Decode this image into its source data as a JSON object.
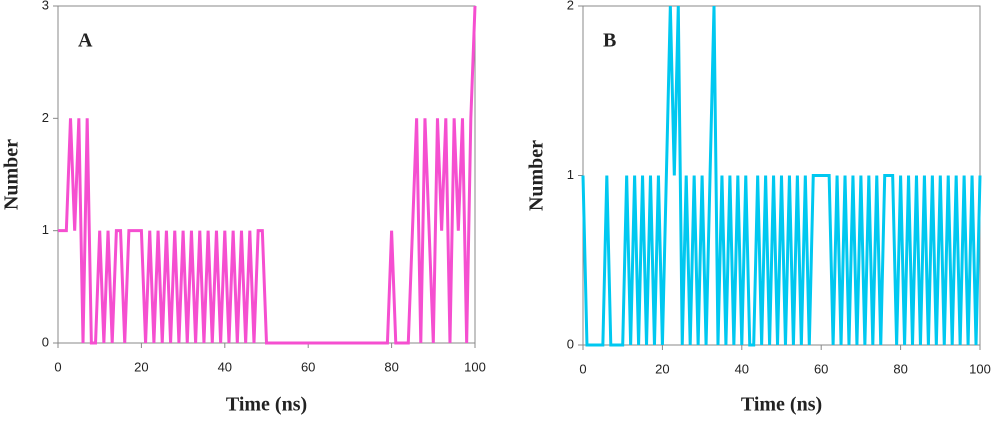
{
  "chart_data": [
    {
      "type": "line",
      "annotation": "A",
      "xlabel": "Time (ns)",
      "ylabel": "Number",
      "xlim": [
        0,
        100
      ],
      "xticks": [
        0,
        20,
        40,
        60,
        80,
        100
      ],
      "ylim": [
        0,
        3
      ],
      "yticks": [
        0,
        1,
        2,
        3
      ],
      "series": [
        {
          "name": "A",
          "color": "#f54fd0",
          "x": [
            0,
            1,
            2,
            3,
            4,
            5,
            6,
            7,
            8,
            9,
            10,
            11,
            12,
            13,
            14,
            15,
            16,
            17,
            18,
            19,
            20,
            21,
            22,
            23,
            24,
            25,
            26,
            27,
            28,
            29,
            30,
            31,
            32,
            33,
            34,
            35,
            36,
            37,
            38,
            39,
            40,
            41,
            42,
            43,
            44,
            45,
            46,
            47,
            48,
            49,
            50,
            51,
            52,
            53,
            54,
            55,
            56,
            57,
            58,
            59,
            60,
            61,
            62,
            63,
            64,
            65,
            66,
            67,
            68,
            69,
            70,
            71,
            72,
            73,
            74,
            75,
            76,
            77,
            78,
            79,
            80,
            81,
            82,
            83,
            84,
            85,
            86,
            87,
            88,
            89,
            90,
            91,
            92,
            93,
            94,
            95,
            96,
            97,
            98,
            99,
            100
          ],
          "values": [
            1,
            1,
            1,
            2,
            1,
            2,
            0,
            2,
            0,
            0,
            1,
            0,
            1,
            0,
            1,
            1,
            0,
            1,
            1,
            1,
            1,
            0,
            1,
            0,
            1,
            0,
            1,
            0,
            1,
            0,
            1,
            0,
            1,
            0,
            1,
            0,
            1,
            0,
            1,
            0,
            1,
            0,
            1,
            0,
            1,
            0,
            1,
            0,
            1,
            1,
            0,
            0,
            0,
            0,
            0,
            0,
            0,
            0,
            0,
            0,
            0,
            0,
            0,
            0,
            0,
            0,
            0,
            0,
            0,
            0,
            0,
            0,
            0,
            0,
            0,
            0,
            0,
            0,
            0,
            0,
            1,
            0,
            0,
            0,
            0,
            1,
            2,
            0,
            2,
            1,
            0,
            2,
            1,
            2,
            0,
            2,
            1,
            2,
            0,
            2,
            3
          ]
        }
      ]
    },
    {
      "type": "line",
      "annotation": "B",
      "xlabel": "Time (ns)",
      "ylabel": "Number",
      "xlim": [
        0,
        100
      ],
      "xticks": [
        0,
        20,
        40,
        60,
        80,
        100
      ],
      "ylim": [
        0,
        2
      ],
      "yticks": [
        0,
        1,
        2
      ],
      "series": [
        {
          "name": "B",
          "color": "#00c8f0",
          "x": [
            0,
            1,
            2,
            3,
            4,
            5,
            6,
            7,
            8,
            9,
            10,
            11,
            12,
            13,
            14,
            15,
            16,
            17,
            18,
            19,
            20,
            21,
            22,
            23,
            24,
            25,
            26,
            27,
            28,
            29,
            30,
            31,
            32,
            33,
            34,
            35,
            36,
            37,
            38,
            39,
            40,
            41,
            42,
            43,
            44,
            45,
            46,
            47,
            48,
            49,
            50,
            51,
            52,
            53,
            54,
            55,
            56,
            57,
            58,
            59,
            60,
            61,
            62,
            63,
            64,
            65,
            66,
            67,
            68,
            69,
            70,
            71,
            72,
            73,
            74,
            75,
            76,
            77,
            78,
            79,
            80,
            81,
            82,
            83,
            84,
            85,
            86,
            87,
            88,
            89,
            90,
            91,
            92,
            93,
            94,
            95,
            96,
            97,
            98,
            99,
            100
          ],
          "values": [
            1,
            0,
            0,
            0,
            0,
            0,
            1,
            0,
            0,
            0,
            0,
            1,
            0,
            1,
            0,
            1,
            0,
            1,
            0,
            1,
            0,
            1,
            2,
            1,
            2,
            0,
            1,
            0,
            1,
            0,
            1,
            0,
            1,
            2,
            0,
            1,
            0,
            1,
            0,
            1,
            0,
            1,
            0,
            0,
            1,
            0,
            1,
            0,
            1,
            0,
            1,
            0,
            1,
            0,
            1,
            0,
            1,
            0,
            1,
            1,
            1,
            1,
            1,
            0,
            1,
            0,
            1,
            0,
            1,
            0,
            1,
            0,
            1,
            0,
            1,
            0,
            1,
            1,
            1,
            0,
            1,
            0,
            1,
            0,
            1,
            0,
            1,
            0,
            1,
            0,
            1,
            0,
            1,
            0,
            1,
            0,
            1,
            0,
            1,
            0,
            1
          ]
        }
      ]
    }
  ]
}
